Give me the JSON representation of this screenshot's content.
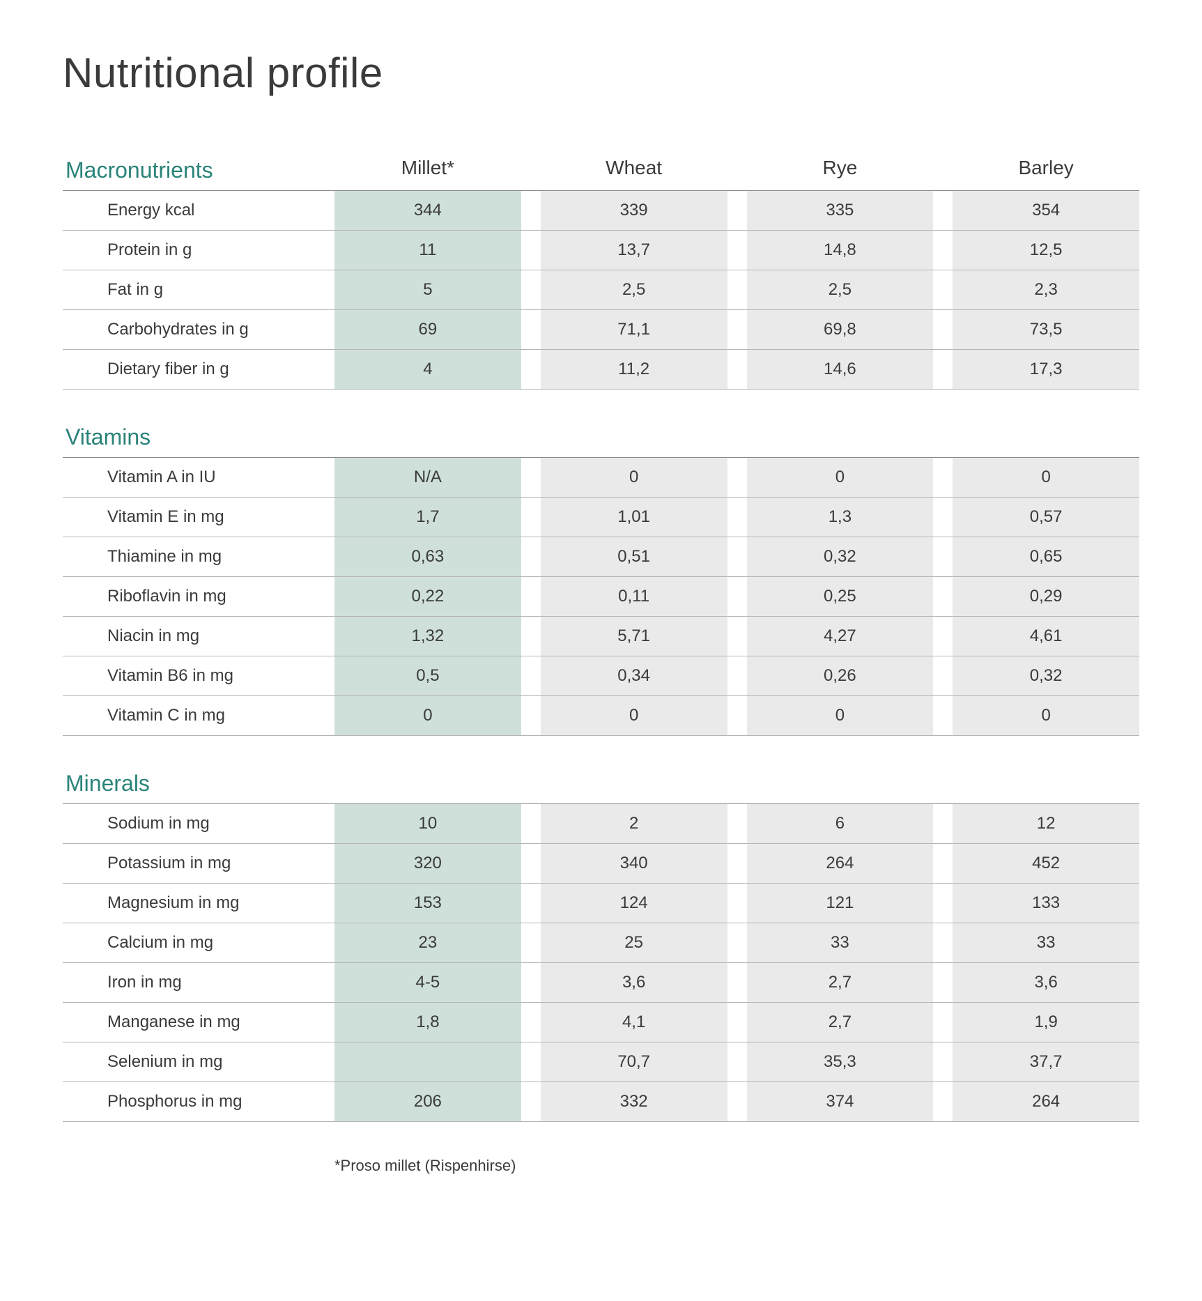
{
  "title": "Nutritional profile",
  "columns": [
    "Millet*",
    "Wheat",
    "Rye",
    "Barley"
  ],
  "highlight_column_index": 0,
  "colors": {
    "section_title": "#2a8378",
    "text": "#3a3a3a",
    "cell_bg": "#eaeaea",
    "highlight_bg": "#cfe0da",
    "border": "#b5b5b5",
    "header_border": "#8a8a8a",
    "background": "#ffffff"
  },
  "fontsizes": {
    "title": 60,
    "section_title": 32,
    "column_header": 28,
    "row_label": 24,
    "cell": 24,
    "footnote": 22
  },
  "sections": [
    {
      "title": "Macronutrients",
      "show_column_headers": true,
      "rows": [
        {
          "label": "Energy kcal",
          "values": [
            "344",
            "339",
            "335",
            "354"
          ]
        },
        {
          "label": "Protein in g",
          "values": [
            "11",
            "13,7",
            "14,8",
            "12,5"
          ]
        },
        {
          "label": "Fat in g",
          "values": [
            "5",
            "2,5",
            "2,5",
            "2,3"
          ]
        },
        {
          "label": "Carbohydrates in g",
          "values": [
            "69",
            "71,1",
            "69,8",
            "73,5"
          ]
        },
        {
          "label": "Dietary fiber in g",
          "values": [
            "4",
            "11,2",
            "14,6",
            "17,3"
          ]
        }
      ]
    },
    {
      "title": "Vitamins",
      "show_column_headers": false,
      "rows": [
        {
          "label": "Vitamin A in IU",
          "values": [
            "N/A",
            "0",
            "0",
            "0"
          ]
        },
        {
          "label": "Vitamin E in mg",
          "values": [
            "1,7",
            "1,01",
            "1,3",
            "0,57"
          ]
        },
        {
          "label": "Thiamine in mg",
          "values": [
            "0,63",
            "0,51",
            "0,32",
            "0,65"
          ]
        },
        {
          "label": "Riboflavin in mg",
          "values": [
            "0,22",
            "0,11",
            "0,25",
            "0,29"
          ]
        },
        {
          "label": "Niacin in mg",
          "values": [
            "1,32",
            "5,71",
            "4,27",
            "4,61"
          ]
        },
        {
          "label": "Vitamin B6 in mg",
          "values": [
            "0,5",
            "0,34",
            "0,26",
            "0,32"
          ]
        },
        {
          "label": "Vitamin C in mg",
          "values": [
            "0",
            "0",
            "0",
            "0"
          ]
        }
      ]
    },
    {
      "title": "Minerals",
      "show_column_headers": false,
      "rows": [
        {
          "label": "Sodium in mg",
          "values": [
            "10",
            "2",
            "6",
            "12"
          ]
        },
        {
          "label": "Potassium in mg",
          "values": [
            "320",
            "340",
            "264",
            "452"
          ]
        },
        {
          "label": "Magnesium in mg",
          "values": [
            "153",
            "124",
            "121",
            "133"
          ]
        },
        {
          "label": "Calcium in mg",
          "values": [
            "23",
            "25",
            "33",
            "33"
          ]
        },
        {
          "label": "Iron in mg",
          "values": [
            "4-5",
            "3,6",
            "2,7",
            "3,6"
          ]
        },
        {
          "label": "Manganese in mg",
          "values": [
            "1,8",
            "4,1",
            "2,7",
            "1,9"
          ]
        },
        {
          "label": "Selenium in mg",
          "values": [
            "",
            "70,7",
            "35,3",
            "37,7"
          ]
        },
        {
          "label": "Phosphorus in mg",
          "values": [
            "206",
            "332",
            "374",
            "264"
          ]
        }
      ]
    }
  ],
  "footnote": "*Proso millet (Rispenhirse)"
}
